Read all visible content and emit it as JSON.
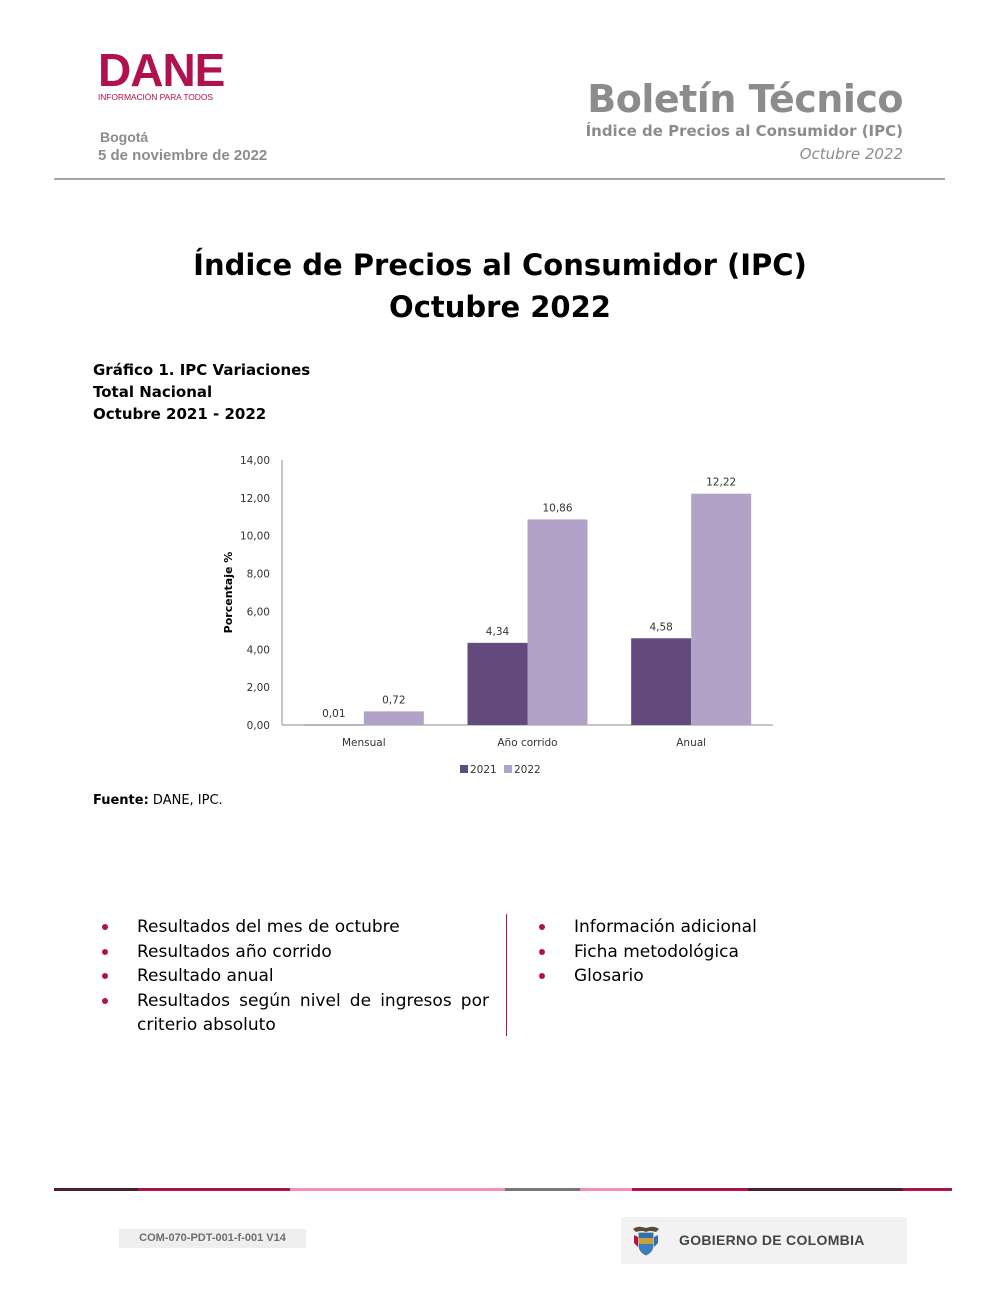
{
  "header": {
    "logo_word": "DANE",
    "logo_tagline": "INFORMACIÓN PARA TODOS",
    "city": "Bogotá",
    "date": "5 de noviembre de 2022",
    "bulletin_title": "Boletín Técnico",
    "bulletin_subtitle": "Índice de Precios al Consumidor (IPC)",
    "bulletin_period": "Octubre 2022"
  },
  "main": {
    "title_line1": "Índice de Precios al Consumidor (IPC)",
    "title_line2": "Octubre 2022",
    "caption_line1": "Gráfico 1. IPC Variaciones",
    "caption_line2": "Total Nacional",
    "caption_line3": "Octubre 2021 - 2022",
    "source_label": "Fuente:",
    "source_text": " DANE, IPC."
  },
  "chart_data": {
    "type": "bar",
    "categories": [
      "Mensual",
      "Año corrido",
      "Anual"
    ],
    "series": [
      {
        "name": "2021",
        "values": [
          0.01,
          4.34,
          4.58
        ],
        "labels": [
          "0,01",
          "4,34",
          "4,58"
        ],
        "color": "#624a7c"
      },
      {
        "name": "2022",
        "values": [
          0.72,
          10.86,
          12.22
        ],
        "labels": [
          "0,72",
          "10,86",
          "12,22"
        ],
        "color": "#b3a2c7"
      }
    ],
    "ylabel": "Porcentaje %",
    "xlabel": "",
    "ylim": [
      0,
      14
    ],
    "yticks": [
      "0,00",
      "2,00",
      "4,00",
      "6,00",
      "8,00",
      "10,00",
      "12,00",
      "14,00"
    ],
    "grid": false,
    "legend": "bottom"
  },
  "contents": {
    "left": [
      "Resultados del mes de octubre",
      "Resultados año corrido",
      "Resultado anual",
      "Resultados según nivel de ingresos por criterio absoluto"
    ],
    "right": [
      "Información adicional",
      "Ficha metodológica",
      "Glosario"
    ],
    "bullet_color": "#b0124f"
  },
  "footer": {
    "doc_code": "COM-070-PDT-001-f-001 V14",
    "gov_label": "GOBIERNO DE COLOMBIA",
    "bar_colors": [
      "#4a1f2e",
      "#b0124f",
      "#f28dbf",
      "#777777",
      "#f28dbf",
      "#b0124f",
      "#4a1f2e",
      "#b0124f"
    ]
  }
}
